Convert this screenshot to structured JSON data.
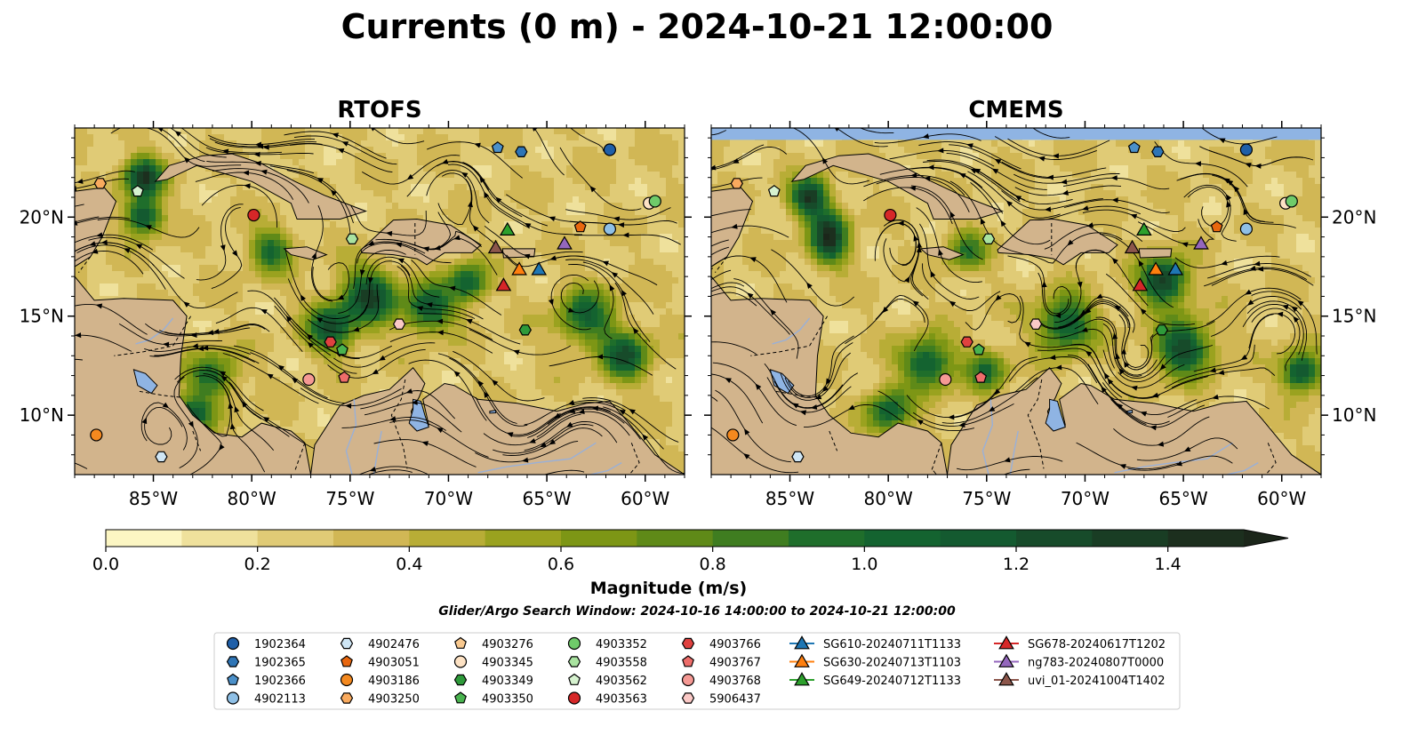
{
  "figure": {
    "title": "Currents (0 m) - 2024-10-21 12:00:00",
    "search_window": "Glider/Argo Search Window: 2024-10-16 14:00:00 to 2024-10-21 12:00:00"
  },
  "panels": [
    {
      "id": "rtofs",
      "title": "RTOFS"
    },
    {
      "id": "cmems",
      "title": "CMEMS"
    }
  ],
  "map_extent": {
    "lon_min": -89,
    "lon_max": -58,
    "lat_min": 7,
    "lat_max": 24.5
  },
  "axes": {
    "lon_ticks": [
      {
        "value": -85,
        "label": "85°W"
      },
      {
        "value": -80,
        "label": "80°W"
      },
      {
        "value": -75,
        "label": "75°W"
      },
      {
        "value": -70,
        "label": "70°W"
      },
      {
        "value": -65,
        "label": "65°W"
      },
      {
        "value": -60,
        "label": "60°W"
      }
    ],
    "lat_ticks": [
      {
        "value": 20,
        "label": "20°N"
      },
      {
        "value": 15,
        "label": "15°N"
      },
      {
        "value": 10,
        "label": "10°N"
      }
    ]
  },
  "colorbar": {
    "label": "Magnitude (m/s)",
    "min": 0.0,
    "max": 1.6,
    "extend": "max",
    "ticks": [
      {
        "value": 0.0,
        "label": "0.0"
      },
      {
        "value": 0.2,
        "label": "0.2"
      },
      {
        "value": 0.4,
        "label": "0.4"
      },
      {
        "value": 0.6,
        "label": "0.6"
      },
      {
        "value": 0.8,
        "label": "0.8"
      },
      {
        "value": 1.0,
        "label": "1.0"
      },
      {
        "value": 1.2,
        "label": "1.2"
      },
      {
        "value": 1.4,
        "label": "1.4"
      }
    ],
    "colors": [
      "#fcf6c3",
      "#efe19c",
      "#e0cb76",
      "#d1b755",
      "#b8ad36",
      "#9aa21f",
      "#7d9615",
      "#5f8a18",
      "#3f7d20",
      "#1f6e2b",
      "#146330",
      "#145a30",
      "#174b2a",
      "#193d24",
      "#1c2f1e",
      "#1b261a"
    ]
  },
  "colors": {
    "land": "#d2b48c",
    "lakes": "#8fb4e3",
    "rivers": "#99b0d8",
    "ocean_mask": "#8fb4e3"
  },
  "legend": {
    "columns": [
      [
        {
          "label": "1902364",
          "marker": "circle",
          "color": "#1f5fa8"
        },
        {
          "label": "1902365",
          "marker": "hexagon",
          "color": "#2e75b6"
        },
        {
          "label": "1902366",
          "marker": "pentagon",
          "color": "#4b90c9"
        },
        {
          "label": "4902113",
          "marker": "circle",
          "color": "#8fc0e6"
        }
      ],
      [
        {
          "label": "4902476",
          "marker": "hexagon",
          "color": "#cfe6f5"
        },
        {
          "label": "4903051",
          "marker": "pentagon",
          "color": "#e8670f"
        },
        {
          "label": "4903186",
          "marker": "circle",
          "color": "#f4891f"
        },
        {
          "label": "4903250",
          "marker": "hexagon",
          "color": "#f9aa5e"
        }
      ],
      [
        {
          "label": "4903276",
          "marker": "pentagon",
          "color": "#f9c98f"
        },
        {
          "label": "4903345",
          "marker": "circle",
          "color": "#fde2c4"
        },
        {
          "label": "4903349",
          "marker": "hexagon",
          "color": "#2e9a3a"
        },
        {
          "label": "4903350",
          "marker": "pentagon",
          "color": "#49b34f"
        }
      ],
      [
        {
          "label": "4903352",
          "marker": "circle",
          "color": "#6fcb6a"
        },
        {
          "label": "4903558",
          "marker": "hexagon",
          "color": "#a9e3a0"
        },
        {
          "label": "4903562",
          "marker": "pentagon",
          "color": "#d6f2cf"
        },
        {
          "label": "4903563",
          "marker": "circle",
          "color": "#d62728"
        }
      ],
      [
        {
          "label": "4903766",
          "marker": "hexagon",
          "color": "#e0413f"
        },
        {
          "label": "4903767",
          "marker": "pentagon",
          "color": "#ee6d6a"
        },
        {
          "label": "4903768",
          "marker": "circle",
          "color": "#f59994"
        },
        {
          "label": "5906437",
          "marker": "hexagon",
          "color": "#fbc9c6"
        }
      ],
      [
        {
          "label": "SG610-20240711T1133",
          "marker": "triangle",
          "color": "#1f77b4"
        },
        {
          "label": "SG630-20240713T1103",
          "marker": "triangle",
          "color": "#ff7f0e"
        },
        {
          "label": "SG649-20240712T1133",
          "marker": "triangle",
          "color": "#2ca02c"
        }
      ],
      [
        {
          "label": "SG678-20240617T1202",
          "marker": "triangle",
          "color": "#d62728"
        },
        {
          "label": "ng783-20240807T0000",
          "marker": "triangle",
          "color": "#9467bd"
        },
        {
          "label": "uvi_01-20241004T1402",
          "marker": "triangle",
          "color": "#8c564b"
        }
      ]
    ]
  },
  "observations": [
    {
      "id": "1902364",
      "lon": -61.8,
      "lat": 23.4
    },
    {
      "id": "1902365",
      "lon": -66.3,
      "lat": 23.3
    },
    {
      "id": "1902366",
      "lon": -67.5,
      "lat": 23.5
    },
    {
      "id": "4902113",
      "lon": -61.8,
      "lat": 19.4
    },
    {
      "id": "4902476",
      "lon": -84.6,
      "lat": 7.9
    },
    {
      "id": "4903051",
      "lon": -63.3,
      "lat": 19.5
    },
    {
      "id": "4903186",
      "lon": -87.9,
      "lat": 9.0
    },
    {
      "id": "4903250",
      "lon": -87.7,
      "lat": 21.7
    },
    {
      "id": "4903345",
      "lon": -59.8,
      "lat": 20.7
    },
    {
      "id": "4903349",
      "lon": -66.1,
      "lat": 14.3
    },
    {
      "id": "4903350",
      "lon": -75.4,
      "lat": 13.3
    },
    {
      "id": "4903352",
      "lon": -59.5,
      "lat": 20.8
    },
    {
      "id": "4903558",
      "lon": -74.9,
      "lat": 18.9
    },
    {
      "id": "4903562",
      "lon": -85.8,
      "lat": 21.3
    },
    {
      "id": "4903563",
      "lon": -79.9,
      "lat": 20.1
    },
    {
      "id": "4903766",
      "lon": -76.0,
      "lat": 13.7
    },
    {
      "id": "4903767",
      "lon": -75.3,
      "lat": 11.9
    },
    {
      "id": "4903768",
      "lon": -77.1,
      "lat": 11.8
    },
    {
      "id": "5906437",
      "lon": -72.5,
      "lat": 14.6
    },
    {
      "id": "SG610-20240711T1133",
      "lon": -65.4,
      "lat": 17.4
    },
    {
      "id": "SG630-20240713T1103",
      "lon": -66.4,
      "lat": 17.4
    },
    {
      "id": "SG649-20240712T1133",
      "lon": -67.0,
      "lat": 19.4
    },
    {
      "id": "SG678-20240617T1202",
      "lon": -67.2,
      "lat": 16.6
    },
    {
      "id": "ng783-20240807T0000",
      "lon": -64.1,
      "lat": 18.7
    },
    {
      "id": "uvi_01-20241004T1402",
      "lon": -67.6,
      "lat": 18.5
    }
  ]
}
